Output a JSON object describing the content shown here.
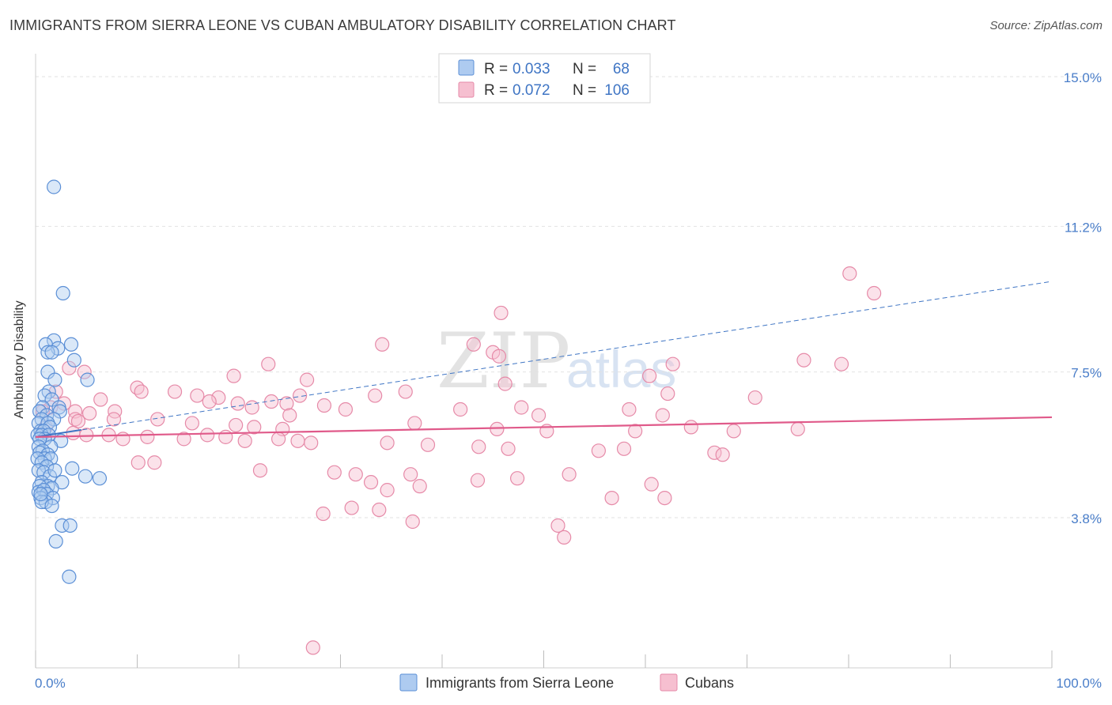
{
  "title": "IMMIGRANTS FROM SIERRA LEONE VS CUBAN AMBULATORY DISABILITY CORRELATION CHART",
  "source": "Source: ZipAtlas.com",
  "colors": {
    "blue_fill": "#aecbf0",
    "blue_stroke": "#5b8fd6",
    "blue_line": "#3f75c4",
    "pink_fill": "#f6bfd0",
    "pink_stroke": "#e68aa8",
    "pink_line": "#e05a8a",
    "grid": "#e2e2e2",
    "axis_label": "#4a7ec9"
  },
  "chart_data": {
    "type": "scatter",
    "title": "IMMIGRANTS FROM SIERRA LEONE VS CUBAN AMBULATORY DISABILITY CORRELATION CHART",
    "xlabel": "",
    "ylabel": "Ambulatory Disability",
    "xlim": [
      0,
      100
    ],
    "ylim": [
      0,
      15.5
    ],
    "x_tick_labels": [
      "0.0%",
      "100.0%"
    ],
    "y_ticks": [
      3.8,
      7.5,
      11.2,
      15.0
    ],
    "y_tick_labels": [
      "3.8%",
      "7.5%",
      "11.2%",
      "15.0%"
    ],
    "grid": true,
    "watermark": {
      "left": "ZIP",
      "right": "atlas"
    },
    "legend": [
      {
        "series": "Immigrants from Sierra Leone",
        "r_label": "R =",
        "r": "0.033",
        "n_label": "N =",
        "n": "68"
      },
      {
        "series": "Cubans",
        "r_label": "R =",
        "r": "0.072",
        "n_label": "N =",
        "n": "106"
      }
    ],
    "series": [
      {
        "name": "Immigrants from Sierra Leone",
        "color": "blue",
        "trend": {
          "x": [
            0,
            100
          ],
          "y": [
            5.85,
            9.8
          ],
          "style": "dashed"
        },
        "trend_solid": {
          "x": [
            0,
            4.5
          ],
          "y": [
            5.85,
            6.03
          ]
        },
        "points": [
          [
            1.8,
            12.2
          ],
          [
            2.7,
            9.5
          ],
          [
            1.8,
            8.3
          ],
          [
            1.0,
            8.2
          ],
          [
            2.2,
            8.1
          ],
          [
            3.5,
            8.2
          ],
          [
            1.2,
            8.0
          ],
          [
            1.6,
            8.0
          ],
          [
            3.8,
            7.8
          ],
          [
            1.2,
            7.5
          ],
          [
            5.1,
            7.3
          ],
          [
            1.9,
            7.3
          ],
          [
            1.3,
            7.0
          ],
          [
            0.9,
            6.9
          ],
          [
            1.6,
            6.8
          ],
          [
            2.3,
            6.6
          ],
          [
            0.7,
            6.6
          ],
          [
            0.4,
            6.5
          ],
          [
            2.4,
            6.5
          ],
          [
            1.1,
            6.4
          ],
          [
            0.6,
            6.3
          ],
          [
            1.8,
            6.3
          ],
          [
            0.3,
            6.2
          ],
          [
            1.2,
            6.2
          ],
          [
            0.5,
            6.0
          ],
          [
            1.4,
            6.1
          ],
          [
            0.8,
            6.0
          ],
          [
            0.2,
            5.9
          ],
          [
            0.6,
            5.9
          ],
          [
            1.3,
            5.9
          ],
          [
            0.9,
            5.8
          ],
          [
            0.4,
            5.8
          ],
          [
            2.5,
            5.75
          ],
          [
            0.3,
            5.6
          ],
          [
            1.5,
            5.6
          ],
          [
            0.7,
            5.5
          ],
          [
            0.4,
            5.45
          ],
          [
            1.2,
            5.4
          ],
          [
            0.9,
            5.3
          ],
          [
            0.2,
            5.3
          ],
          [
            1.5,
            5.3
          ],
          [
            0.6,
            5.2
          ],
          [
            1.1,
            5.1
          ],
          [
            0.3,
            5.0
          ],
          [
            3.6,
            5.05
          ],
          [
            0.8,
            4.95
          ],
          [
            4.9,
            4.85
          ],
          [
            1.4,
            4.85
          ],
          [
            6.3,
            4.8
          ],
          [
            2.6,
            4.7
          ],
          [
            0.6,
            4.7
          ],
          [
            1.2,
            4.6
          ],
          [
            0.4,
            4.6
          ],
          [
            1.6,
            4.55
          ],
          [
            0.3,
            4.45
          ],
          [
            0.8,
            4.5
          ],
          [
            1.1,
            4.4
          ],
          [
            0.5,
            4.3
          ],
          [
            1.7,
            4.3
          ],
          [
            1.0,
            4.2
          ],
          [
            0.6,
            4.2
          ],
          [
            1.6,
            4.1
          ],
          [
            2.6,
            3.6
          ],
          [
            3.4,
            3.6
          ],
          [
            2.0,
            3.2
          ],
          [
            3.3,
            2.3
          ],
          [
            0.5,
            4.4
          ],
          [
            1.9,
            5.0
          ]
        ]
      },
      {
        "name": "Cubans",
        "color": "pink",
        "trend": {
          "x": [
            0,
            100
          ],
          "y": [
            5.85,
            6.35
          ],
          "style": "solid"
        },
        "points": [
          [
            27.3,
            0.5
          ],
          [
            80.1,
            10.0
          ],
          [
            82.5,
            9.5
          ],
          [
            45.8,
            9.0
          ],
          [
            34.1,
            8.2
          ],
          [
            43.1,
            8.2
          ],
          [
            45.0,
            8.0
          ],
          [
            45.6,
            7.9
          ],
          [
            22.9,
            7.7
          ],
          [
            62.7,
            7.7
          ],
          [
            75.6,
            7.8
          ],
          [
            79.3,
            7.7
          ],
          [
            3.3,
            7.6
          ],
          [
            4.8,
            7.5
          ],
          [
            19.5,
            7.4
          ],
          [
            26.7,
            7.3
          ],
          [
            46.2,
            7.2
          ],
          [
            60.4,
            7.4
          ],
          [
            10.0,
            7.1
          ],
          [
            10.4,
            7.0
          ],
          [
            13.7,
            7.0
          ],
          [
            36.4,
            7.0
          ],
          [
            62.2,
            6.95
          ],
          [
            2.0,
            7.0
          ],
          [
            15.9,
            6.9
          ],
          [
            18.0,
            6.85
          ],
          [
            26.0,
            6.9
          ],
          [
            33.4,
            6.9
          ],
          [
            70.8,
            6.85
          ],
          [
            6.4,
            6.8
          ],
          [
            17.1,
            6.75
          ],
          [
            19.9,
            6.7
          ],
          [
            23.2,
            6.75
          ],
          [
            24.7,
            6.7
          ],
          [
            2.8,
            6.7
          ],
          [
            1.5,
            6.6
          ],
          [
            7.8,
            6.5
          ],
          [
            21.3,
            6.6
          ],
          [
            28.4,
            6.65
          ],
          [
            30.5,
            6.55
          ],
          [
            41.8,
            6.55
          ],
          [
            47.8,
            6.6
          ],
          [
            58.4,
            6.55
          ],
          [
            3.9,
            6.5
          ],
          [
            5.3,
            6.45
          ],
          [
            25.0,
            6.4
          ],
          [
            49.5,
            6.4
          ],
          [
            61.7,
            6.4
          ],
          [
            3.9,
            6.3
          ],
          [
            0.7,
            6.5
          ],
          [
            4.2,
            6.25
          ],
          [
            7.7,
            6.3
          ],
          [
            12.0,
            6.3
          ],
          [
            15.4,
            6.2
          ],
          [
            19.7,
            6.15
          ],
          [
            21.5,
            6.1
          ],
          [
            24.3,
            6.05
          ],
          [
            37.3,
            6.2
          ],
          [
            45.4,
            6.05
          ],
          [
            50.3,
            6.0
          ],
          [
            59.0,
            6.0
          ],
          [
            64.5,
            6.1
          ],
          [
            68.7,
            6.0
          ],
          [
            75.0,
            6.05
          ],
          [
            1.0,
            6.1
          ],
          [
            3.7,
            5.95
          ],
          [
            5.0,
            5.9
          ],
          [
            7.2,
            5.9
          ],
          [
            8.6,
            5.8
          ],
          [
            11.0,
            5.85
          ],
          [
            14.6,
            5.8
          ],
          [
            16.9,
            5.9
          ],
          [
            18.7,
            5.85
          ],
          [
            20.6,
            5.75
          ],
          [
            23.9,
            5.8
          ],
          [
            25.8,
            5.75
          ],
          [
            27.1,
            5.7
          ],
          [
            34.6,
            5.7
          ],
          [
            38.6,
            5.65
          ],
          [
            43.6,
            5.6
          ],
          [
            46.5,
            5.55
          ],
          [
            55.4,
            5.5
          ],
          [
            57.9,
            5.55
          ],
          [
            66.8,
            5.45
          ],
          [
            67.6,
            5.4
          ],
          [
            10.1,
            5.2
          ],
          [
            11.7,
            5.2
          ],
          [
            22.1,
            5.0
          ],
          [
            29.4,
            4.95
          ],
          [
            31.5,
            4.9
          ],
          [
            36.9,
            4.9
          ],
          [
            47.4,
            4.8
          ],
          [
            52.5,
            4.9
          ],
          [
            60.6,
            4.65
          ],
          [
            56.7,
            4.3
          ],
          [
            33.0,
            4.7
          ],
          [
            37.8,
            4.6
          ],
          [
            43.5,
            4.75
          ],
          [
            61.9,
            4.3
          ],
          [
            34.6,
            4.5
          ],
          [
            28.3,
            3.9
          ],
          [
            31.1,
            4.05
          ],
          [
            33.8,
            4.0
          ],
          [
            37.1,
            3.7
          ],
          [
            52.0,
            3.3
          ],
          [
            51.4,
            3.6
          ]
        ]
      }
    ]
  },
  "bottom_legend": {
    "series1": "Immigrants from Sierra Leone",
    "series2": "Cubans"
  }
}
